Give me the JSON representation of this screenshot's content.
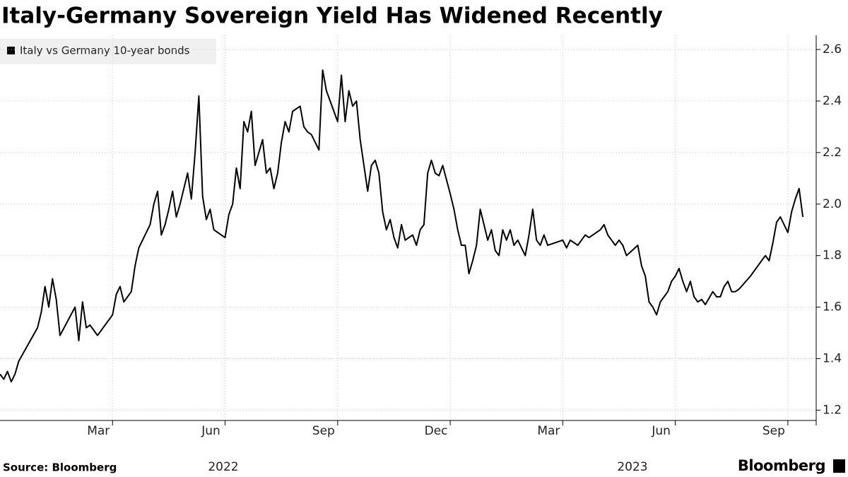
{
  "chart_data": {
    "type": "line",
    "title": "Italy-Germany Sovereign Yield Has Widened Recently",
    "source": "Source: Bloomberg",
    "brand": "Bloomberg",
    "series": [
      {
        "name": "Italy vs Germany 10-year bonds",
        "color": "#000000",
        "values": [
          1.34,
          1.32,
          1.35,
          1.31,
          1.34,
          1.39,
          1.52,
          1.58,
          1.68,
          1.6,
          1.71,
          1.63,
          1.49,
          1.6,
          1.47,
          1.62,
          1.52,
          1.53,
          1.51,
          1.49,
          1.57,
          1.65,
          1.68,
          1.62,
          1.64,
          1.66,
          1.76,
          1.83,
          1.92,
          2.0,
          2.05,
          1.88,
          1.92,
          1.98,
          2.05,
          1.95,
          2.0,
          2.12,
          2.02,
          2.2,
          2.42,
          2.03,
          1.94,
          1.98,
          1.9,
          1.87,
          1.96,
          2.0,
          2.14,
          2.06,
          2.32,
          2.28,
          2.36,
          2.15,
          2.25,
          2.12,
          2.14,
          2.06,
          2.12,
          2.24,
          2.32,
          2.28,
          2.36,
          2.38,
          2.3,
          2.28,
          2.27,
          2.24,
          2.21,
          2.52,
          2.44,
          2.32,
          2.5,
          2.32,
          2.44,
          2.38,
          2.4,
          2.25,
          2.15,
          2.05,
          2.15,
          2.17,
          2.12,
          1.97,
          1.9,
          1.94,
          1.87,
          1.83,
          1.92,
          1.86,
          1.88,
          1.84,
          1.9,
          1.92,
          2.12,
          2.17,
          2.12,
          2.11,
          2.15,
          2.04,
          1.98,
          1.9,
          1.84,
          1.84,
          1.73,
          1.78,
          1.84,
          1.98,
          1.86,
          1.9,
          1.82,
          1.8,
          1.9,
          1.86,
          1.9,
          1.84,
          1.86,
          1.8,
          1.88,
          1.98,
          1.86,
          1.84,
          1.88,
          1.84,
          1.86,
          1.83,
          1.86,
          1.85,
          1.84,
          1.86,
          1.88,
          1.87,
          1.9,
          1.92,
          1.88,
          1.86,
          1.84,
          1.86,
          1.84,
          1.8,
          1.84,
          1.76,
          1.72,
          1.62,
          1.6,
          1.57,
          1.62,
          1.64,
          1.66,
          1.7,
          1.72,
          1.75,
          1.7,
          1.66,
          1.7,
          1.64,
          1.62,
          1.63,
          1.61,
          1.66,
          1.64,
          1.64,
          1.68,
          1.7,
          1.66,
          1.66,
          1.67,
          1.72,
          1.74,
          1.76,
          1.78,
          1.8,
          1.78,
          1.85,
          1.93,
          1.95,
          1.89,
          1.97,
          2.02,
          2.06,
          1.95
        ]
      }
    ],
    "x": [
      "2021-12",
      "2021-12",
      "2021-12",
      "2021-12",
      "2021-12",
      "2021-12",
      "2022-01",
      "2022-01",
      "2022-01",
      "2022-01",
      "2022-01",
      "2022-01",
      "2022-01",
      "2022-02",
      "2022-02",
      "2022-02",
      "2022-02",
      "2022-02",
      "2022-02",
      "2022-02",
      "2022-03",
      "2022-03",
      "2022-03",
      "2022-03",
      "2022-03",
      "2022-03",
      "2022-03",
      "2022-03",
      "2022-04",
      "2022-04",
      "2022-04",
      "2022-04",
      "2022-04",
      "2022-04",
      "2022-04",
      "2022-04",
      "2022-04",
      "2022-05",
      "2022-05",
      "2022-05",
      "2022-05",
      "2022-05",
      "2022-05",
      "2022-05",
      "2022-05",
      "2022-06",
      "2022-06",
      "2022-06",
      "2022-06",
      "2022-06",
      "2022-06",
      "2022-06",
      "2022-06",
      "2022-06",
      "2022-07",
      "2022-07",
      "2022-07",
      "2022-07",
      "2022-07",
      "2022-07",
      "2022-07",
      "2022-07",
      "2022-07",
      "2022-08",
      "2022-08",
      "2022-08",
      "2022-08",
      "2022-08",
      "2022-08",
      "2022-08",
      "2022-08",
      "2022-09",
      "2022-09",
      "2022-09",
      "2022-09",
      "2022-09",
      "2022-09",
      "2022-09",
      "2022-09",
      "2022-09",
      "2022-09",
      "2022-10",
      "2022-10",
      "2022-10",
      "2022-10",
      "2022-10",
      "2022-10",
      "2022-10",
      "2022-10",
      "2022-10",
      "2022-11",
      "2022-11",
      "2022-11",
      "2022-11",
      "2022-11",
      "2022-11",
      "2022-11",
      "2022-11",
      "2022-11",
      "2022-12",
      "2022-12",
      "2022-12",
      "2022-12",
      "2022-12",
      "2022-12",
      "2022-12",
      "2022-12",
      "2022-12",
      "2023-01",
      "2023-01",
      "2023-01",
      "2023-01",
      "2023-01",
      "2023-01",
      "2023-01",
      "2023-01",
      "2023-01",
      "2023-02",
      "2023-02",
      "2023-02",
      "2023-02",
      "2023-02",
      "2023-02",
      "2023-02",
      "2023-03",
      "2023-03",
      "2023-03",
      "2023-03",
      "2023-03",
      "2023-03",
      "2023-03",
      "2023-03",
      "2023-04",
      "2023-04",
      "2023-04",
      "2023-04",
      "2023-04",
      "2023-04",
      "2023-04",
      "2023-04",
      "2023-05",
      "2023-05",
      "2023-05",
      "2023-05",
      "2023-05",
      "2023-05",
      "2023-05",
      "2023-05",
      "2023-05",
      "2023-05",
      "2023-06",
      "2023-06",
      "2023-06",
      "2023-06",
      "2023-06",
      "2023-06",
      "2023-06",
      "2023-06",
      "2023-06",
      "2023-07",
      "2023-07",
      "2023-07",
      "2023-07",
      "2023-07",
      "2023-07",
      "2023-07",
      "2023-07",
      "2023-08",
      "2023-08",
      "2023-08",
      "2023-08",
      "2023-08",
      "2023-08",
      "2023-08",
      "2023-08",
      "2023-08",
      "2023-09",
      "2023-09",
      "2023-09",
      "2023-09",
      "2023-09"
    ],
    "xlim": [
      "2021-12",
      "2023-10"
    ],
    "xticks": [
      {
        "value": "2022-03",
        "label": "Mar"
      },
      {
        "value": "2022-06",
        "label": "Jun"
      },
      {
        "value": "2022-09",
        "label": "Sep"
      },
      {
        "value": "2022-12",
        "label": "Dec"
      },
      {
        "value": "2023-03",
        "label": "Mar"
      },
      {
        "value": "2023-06",
        "label": "Jun"
      },
      {
        "value": "2023-09",
        "label": "Sep"
      }
    ],
    "x_years": [
      "2022",
      "2023"
    ],
    "ylim": [
      1.16,
      2.655
    ],
    "yticks": [
      {
        "value": 1.2,
        "label": "1.2"
      },
      1.4,
      1.6,
      1.8,
      {
        "value": 2,
        "label": "2.0"
      },
      2.2,
      2.4,
      2.6
    ],
    "grid": true,
    "legend": "top-left"
  }
}
